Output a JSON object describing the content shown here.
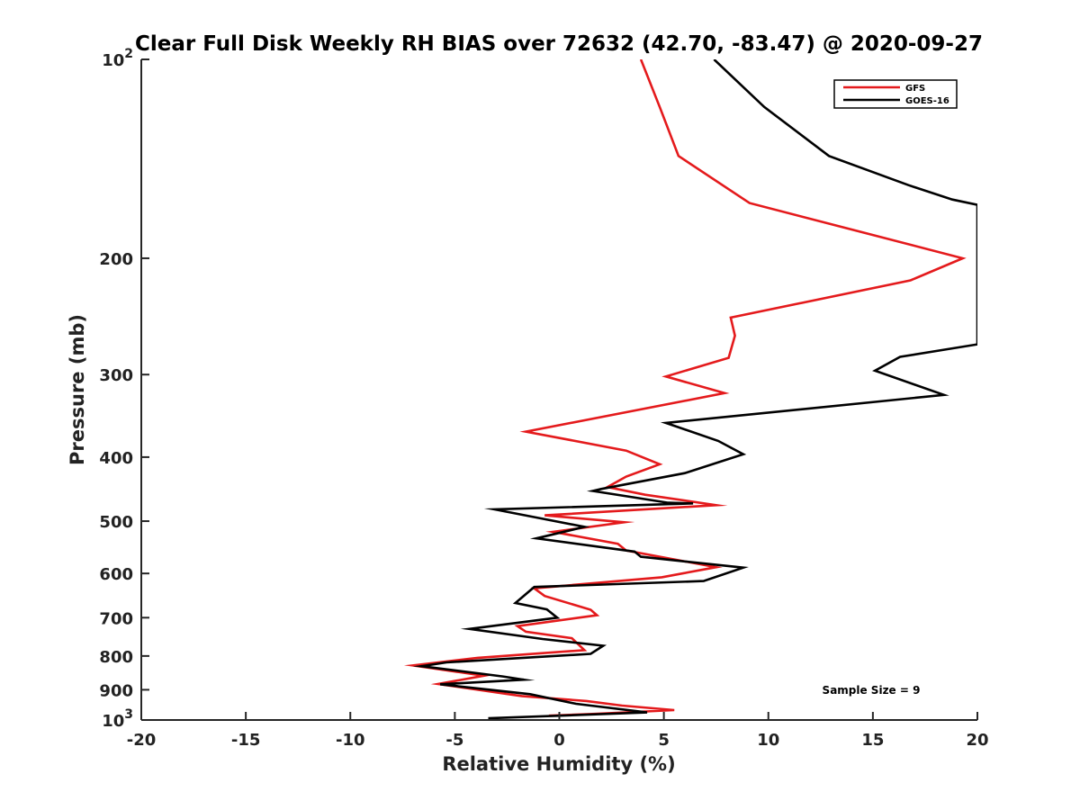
{
  "chart_data": {
    "type": "line",
    "title": "Clear Full Disk Weekly RH BIAS over 72632 (42.70, -83.47) @ 2020-09-27",
    "xlabel": "Relative Humidity (%)",
    "ylabel": "Pressure (mb)",
    "xlim": [
      -20,
      20
    ],
    "ylim": [
      100,
      1000
    ],
    "y_scale": "log",
    "y_reversed": true,
    "grid": false,
    "legend_position": "top-right",
    "x_ticks": [
      -20,
      -15,
      -10,
      -5,
      0,
      5,
      10,
      15,
      20
    ],
    "x_tick_labels": [
      "-20",
      "-15",
      "-10",
      "-5",
      "0",
      "5",
      "10",
      "15",
      "20"
    ],
    "y_ticks": [
      100,
      200,
      300,
      400,
      500,
      600,
      700,
      800,
      900,
      1000
    ],
    "y_tick_labels": [
      {
        "base": "10",
        "exp": "2"
      },
      {
        "base": "200",
        "exp": ""
      },
      {
        "base": "300",
        "exp": ""
      },
      {
        "base": "400",
        "exp": ""
      },
      {
        "base": "500",
        "exp": ""
      },
      {
        "base": "600",
        "exp": ""
      },
      {
        "base": "700",
        "exp": ""
      },
      {
        "base": "800",
        "exp": ""
      },
      {
        "base": "900",
        "exp": ""
      },
      {
        "base": "10",
        "exp": "3"
      }
    ],
    "annotation": "Sample Size = 9",
    "series": [
      {
        "name": "GFS",
        "color": "#e41a1c",
        "points": [
          [
            3.9,
            100
          ],
          [
            4.8,
            118
          ],
          [
            5.7,
            140
          ],
          [
            9.1,
            165
          ],
          [
            19.3,
            200
          ],
          [
            16.8,
            216
          ],
          [
            8.2,
            246
          ],
          [
            8.4,
            262
          ],
          [
            8.1,
            283
          ],
          [
            5.1,
            302
          ],
          [
            7.9,
            320
          ],
          [
            -1.6,
            366
          ],
          [
            3.2,
            391
          ],
          [
            4.8,
            410
          ],
          [
            3.2,
            428
          ],
          [
            2.3,
            444
          ],
          [
            4.1,
            456
          ],
          [
            7.5,
            473
          ],
          [
            -0.7,
            490
          ],
          [
            3.1,
            502
          ],
          [
            -0.3,
            519
          ],
          [
            2.8,
            541
          ],
          [
            3.2,
            554
          ],
          [
            7.5,
            587
          ],
          [
            4.9,
            608
          ],
          [
            -1.2,
            632
          ],
          [
            -0.7,
            649
          ],
          [
            1.5,
            681
          ],
          [
            1.8,
            694
          ],
          [
            -2.0,
            721
          ],
          [
            -1.6,
            735
          ],
          [
            0.6,
            752
          ],
          [
            1.2,
            784
          ],
          [
            -3.9,
            805
          ],
          [
            -7.0,
            827
          ],
          [
            -3.6,
            857
          ],
          [
            -5.8,
            882
          ],
          [
            -1.8,
            920
          ],
          [
            1.3,
            936
          ],
          [
            3.0,
            951
          ],
          [
            5.5,
            966
          ],
          [
            1.7,
            979
          ],
          [
            -0.5,
            985
          ]
        ]
      },
      {
        "name": "GOES-16",
        "color": "#000000",
        "points": [
          [
            7.4,
            100
          ],
          [
            9.8,
            118
          ],
          [
            12.9,
            140
          ],
          [
            16.7,
            155
          ],
          [
            18.8,
            163
          ],
          [
            20.0,
            166
          ],
          [
            20.0,
            270
          ],
          [
            16.3,
            282
          ],
          [
            15.1,
            296
          ],
          [
            18.4,
            322
          ],
          [
            5.1,
            355
          ],
          [
            7.6,
            378
          ],
          [
            8.8,
            396
          ],
          [
            6.0,
            423
          ],
          [
            2.0,
            447
          ],
          [
            1.6,
            450
          ],
          [
            5.2,
            469
          ],
          [
            6.4,
            470
          ],
          [
            -3.1,
            480
          ],
          [
            1.2,
            510
          ],
          [
            -1.1,
            531
          ],
          [
            3.6,
            556
          ],
          [
            3.9,
            566
          ],
          [
            8.8,
            588
          ],
          [
            6.9,
            616
          ],
          [
            -1.2,
            629
          ],
          [
            -2.1,
            665
          ],
          [
            -0.6,
            680
          ],
          [
            -0.1,
            700
          ],
          [
            -4.3,
            728
          ],
          [
            -0.8,
            754
          ],
          [
            2.1,
            772
          ],
          [
            1.5,
            794
          ],
          [
            -5.4,
            818
          ],
          [
            -6.6,
            829
          ],
          [
            -2.7,
            859
          ],
          [
            -1.7,
            869
          ],
          [
            -5.7,
            883
          ],
          [
            -1.4,
            914
          ],
          [
            0.8,
            945
          ],
          [
            4.2,
            974
          ],
          [
            -3.4,
            994
          ]
        ]
      }
    ]
  }
}
